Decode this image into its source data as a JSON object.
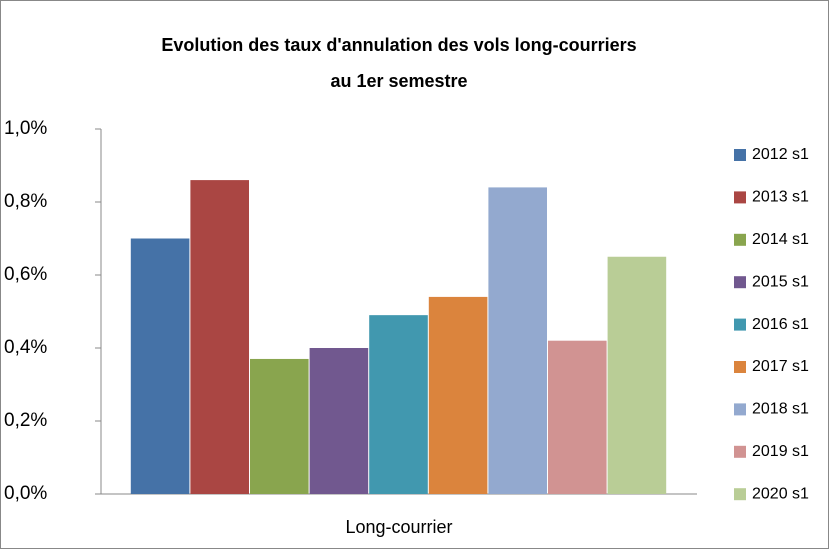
{
  "chart_data": {
    "type": "bar",
    "title": [
      "Evolution des taux d'annulation des vols long-courriers",
      "au 1er semestre"
    ],
    "categories": [
      "Long-courrier"
    ],
    "series": [
      {
        "name": "2012 s1",
        "color": "#4572a7",
        "values": [
          0.7
        ]
      },
      {
        "name": "2013 s1",
        "color": "#aa4643",
        "values": [
          0.86
        ]
      },
      {
        "name": "2014 s1",
        "color": "#89a54e",
        "values": [
          0.37
        ]
      },
      {
        "name": "2015 s1",
        "color": "#71588f",
        "values": [
          0.4
        ]
      },
      {
        "name": "2016 s1",
        "color": "#4198af",
        "values": [
          0.49
        ]
      },
      {
        "name": "2017 s1",
        "color": "#db843d",
        "values": [
          0.54
        ]
      },
      {
        "name": "2018 s1",
        "color": "#93a9cf",
        "values": [
          0.84
        ]
      },
      {
        "name": "2019 s1",
        "color": "#d19392",
        "values": [
          0.42
        ]
      },
      {
        "name": "2020 s1",
        "color": "#b9cd96",
        "values": [
          0.65
        ]
      }
    ],
    "ylim": [
      0,
      1
    ],
    "yticks": [
      {
        "value": 0,
        "label": "0,0%"
      },
      {
        "value": 0.2,
        "label": "0,2%"
      },
      {
        "value": 0.4,
        "label": "0,4%"
      },
      {
        "value": 0.6,
        "label": "0,6%"
      },
      {
        "value": 0.8,
        "label": "0,8%"
      },
      {
        "value": 1,
        "label": "1,0%"
      }
    ],
    "grid": false,
    "legend": "right"
  }
}
